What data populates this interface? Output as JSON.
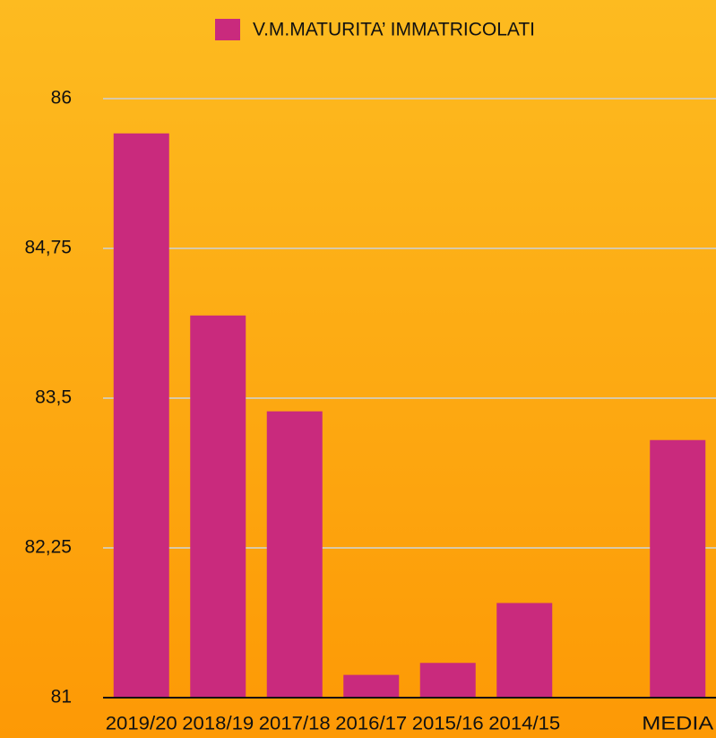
{
  "chart_data": {
    "type": "bar",
    "categories": [
      "2019/20",
      "2018/19",
      "2017/18",
      "2016/17",
      "2015/16",
      "2014/15",
      null,
      "MEDIA"
    ],
    "series": [
      {
        "name": "V.M.MATURITA’ IMMATRICOLATI",
        "color": "#c92a7d",
        "values": [
          85.71,
          84.19,
          83.39,
          81.19,
          81.29,
          81.79,
          null,
          83.15
        ]
      }
    ],
    "ylim": [
      81,
      86
    ],
    "yticks": [
      81,
      {
        "value": 82.25,
        "label": "82,25"
      },
      {
        "value": 83.5,
        "label": "83,5"
      },
      {
        "value": 84.75,
        "label": "84,75"
      },
      86
    ],
    "grid": true,
    "legend": "top"
  }
}
